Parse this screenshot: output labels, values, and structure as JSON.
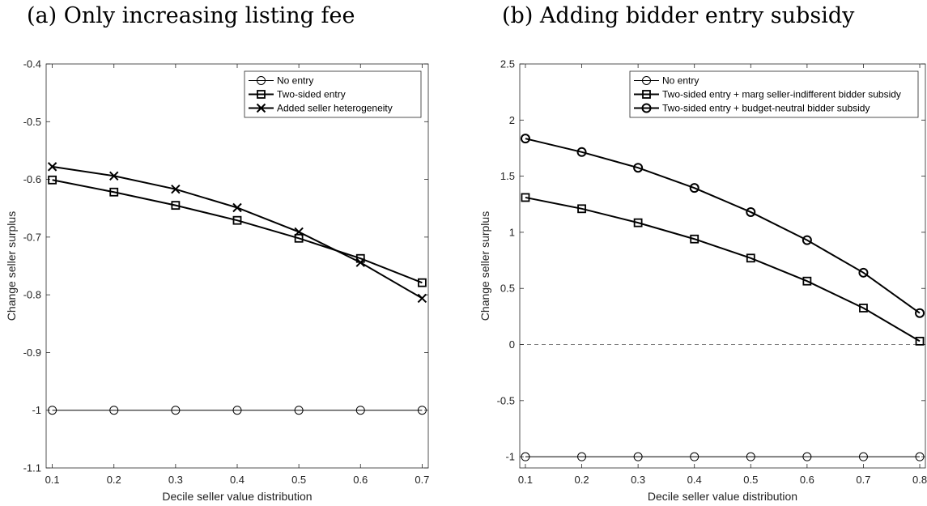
{
  "panels": [
    {
      "title": "(a) Only increasing listing fee",
      "xlabel": "Decile seller value distribution",
      "ylabel": "Change seller surplus"
    },
    {
      "title": "(b) Adding bidder entry subsidy",
      "xlabel": "Decile seller value distribution",
      "ylabel": "Change seller surplus"
    }
  ],
  "chart_data": [
    {
      "type": "line",
      "title": "(a) Only increasing listing fee",
      "xlabel": "Decile seller value distribution",
      "ylabel": "Change seller surplus",
      "xlim": [
        0.09,
        0.71
      ],
      "ylim": [
        -1.1,
        -0.4
      ],
      "xticks": [
        0.1,
        0.2,
        0.3,
        0.4,
        0.5,
        0.6,
        0.7
      ],
      "yticks": [
        -1.1,
        -1,
        -0.9,
        -0.8,
        -0.7,
        -0.6,
        -0.5,
        -0.4
      ],
      "x": [
        0.1,
        0.2,
        0.3,
        0.4,
        0.5,
        0.6,
        0.7
      ],
      "legend_position": "top-right",
      "grid": false,
      "series": [
        {
          "name": "No entry",
          "marker": "circle",
          "weight": "thin",
          "values": [
            -1,
            -1,
            -1,
            -1,
            -1,
            -1,
            -1
          ]
        },
        {
          "name": "Two-sided entry",
          "marker": "square",
          "weight": "thick",
          "values": [
            -0.601,
            -0.622,
            -0.645,
            -0.671,
            -0.702,
            -0.737,
            -0.779
          ]
        },
        {
          "name": "Added seller heterogeneity",
          "marker": "x",
          "weight": "thick",
          "values": [
            -0.578,
            -0.594,
            -0.617,
            -0.649,
            -0.691,
            -0.744,
            -0.806
          ]
        }
      ],
      "reference_line": null
    },
    {
      "type": "line",
      "title": "(b) Adding bidder entry subsidy",
      "xlabel": "Decile seller value distribution",
      "ylabel": "Change seller surplus",
      "xlim": [
        0.09,
        0.81
      ],
      "ylim": [
        -1.1,
        2.5
      ],
      "xticks": [
        0.1,
        0.2,
        0.3,
        0.4,
        0.5,
        0.6,
        0.7,
        0.8
      ],
      "yticks": [
        -1,
        -0.5,
        0,
        0.5,
        1,
        1.5,
        2,
        2.5
      ],
      "x": [
        0.1,
        0.2,
        0.3,
        0.4,
        0.5,
        0.6,
        0.7,
        0.8
      ],
      "legend_position": "top-right",
      "grid": false,
      "series": [
        {
          "name": "No entry",
          "marker": "circle",
          "weight": "thin",
          "values": [
            -1,
            -1,
            -1,
            -1,
            -1,
            -1,
            -1,
            -1
          ]
        },
        {
          "name": "Two-sided entry + marg seller-indifferent bidder subsidy",
          "marker": "square",
          "weight": "thick",
          "values": [
            1.31,
            1.21,
            1.085,
            0.94,
            0.77,
            0.565,
            0.325,
            0.03
          ]
        },
        {
          "name": "Two-sided entry + budget-neutral bidder subsidy",
          "marker": "circle",
          "weight": "thick",
          "values": [
            1.835,
            1.715,
            1.575,
            1.395,
            1.18,
            0.93,
            0.64,
            0.28
          ]
        }
      ],
      "reference_line": {
        "y": 0,
        "style": "dashed",
        "color": "#7f7f7f"
      }
    }
  ]
}
